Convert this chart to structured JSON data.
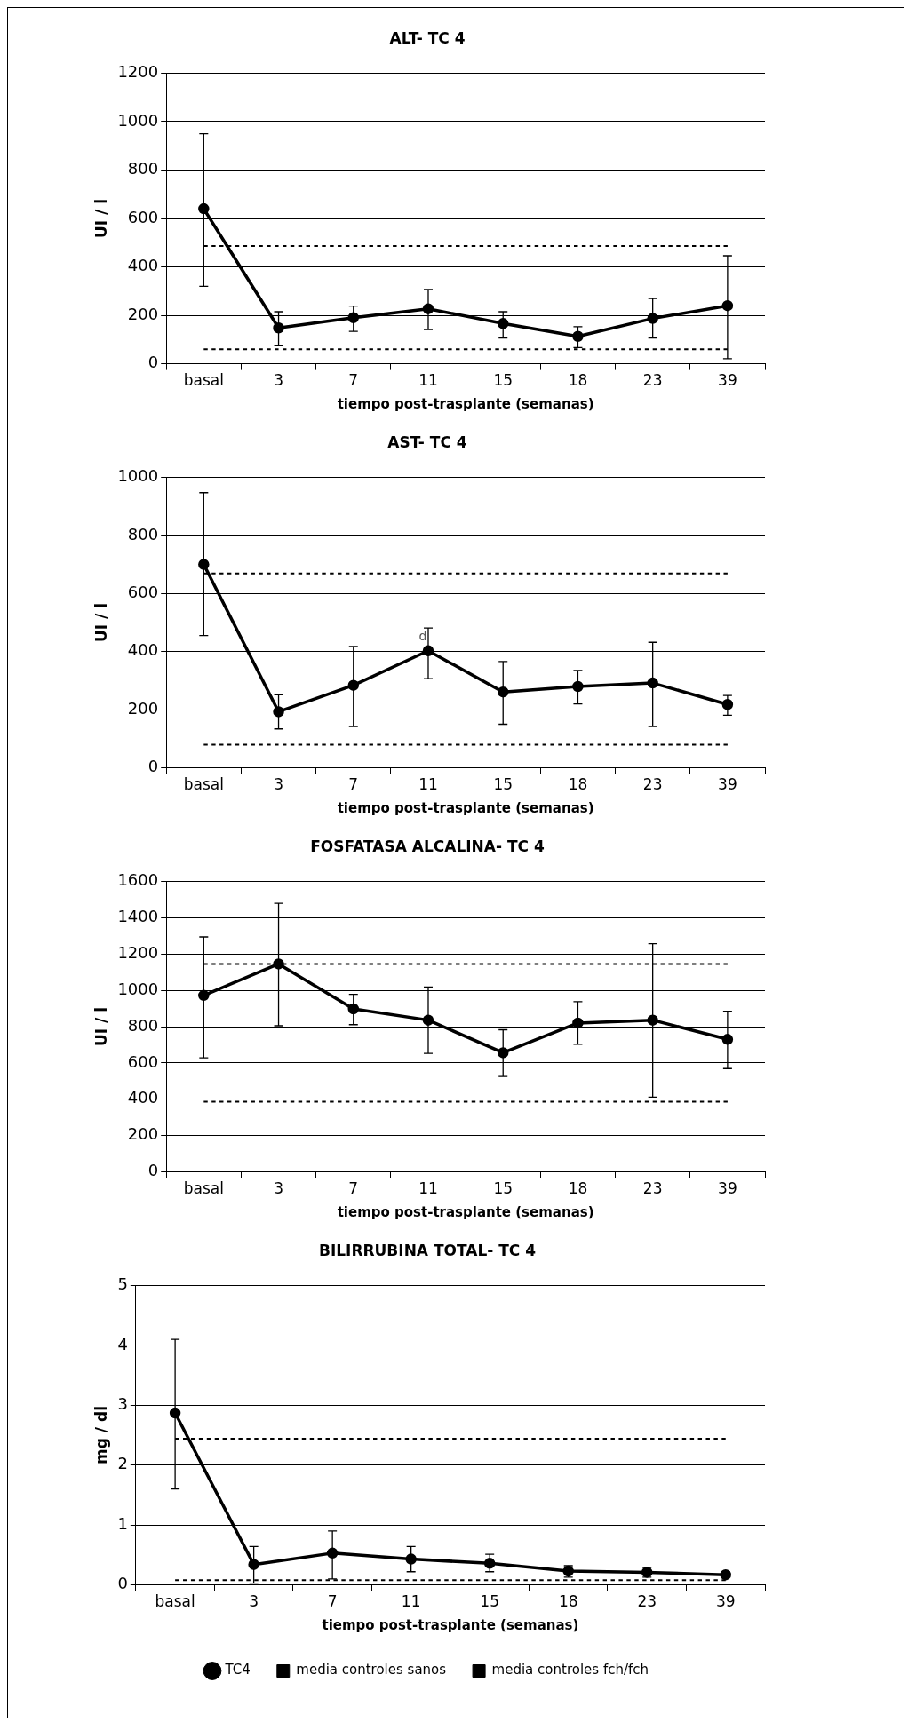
{
  "chart_data": [
    {
      "type": "line",
      "title": "ALT- TC 4",
      "xlabel": "tiempo post-trasplante (semanas)",
      "ylabel": "UI / l",
      "categories": [
        "basal",
        "3",
        "7",
        "11",
        "15",
        "18",
        "23",
        "39"
      ],
      "ylim": [
        0,
        1200
      ],
      "yticks": [
        0,
        200,
        400,
        600,
        800,
        1000,
        1200
      ],
      "grid": "y",
      "legend": false,
      "marker": "circle",
      "series": [
        {
          "color": "#000000",
          "values": [
            640,
            148,
            190,
            227,
            166,
            113,
            187,
            240
          ],
          "errors": [
            [
              320,
              950
            ],
            [
              74,
              215
            ],
            [
              134,
              238
            ],
            [
              141,
              307
            ],
            [
              106,
              215
            ],
            [
              67,
              153
            ],
            [
              106,
              270
            ],
            [
              21,
              446
            ]
          ]
        },
        {
          "type": "line",
          "color": "#000000",
          "line_style": "dotted",
          "marker": "none",
          "values": [
            60,
            60,
            60,
            60,
            60,
            60,
            60,
            60
          ]
        },
        {
          "type": "line",
          "color": "#000000",
          "line_style": "dotted",
          "marker": "none",
          "values": [
            486,
            486,
            486,
            486,
            486,
            486,
            486,
            486
          ]
        }
      ]
    },
    {
      "type": "line",
      "title": "AST- TC 4",
      "xlabel": "tiempo post-trasplante (semanas)",
      "ylabel": "UI / l",
      "categories": [
        "basal",
        "3",
        "7",
        "11",
        "15",
        "18",
        "23",
        "39"
      ],
      "ylim": [
        0,
        1000
      ],
      "yticks": [
        0,
        200,
        400,
        600,
        800,
        1000
      ],
      "grid": "y",
      "legend": false,
      "marker": "circle",
      "annotations": [
        {
          "text": "d",
          "x": "11",
          "y": 428
        }
      ],
      "series": [
        {
          "color": "#000000",
          "values": [
            700,
            193,
            284,
            403,
            261,
            280,
            292,
            218
          ],
          "errors": [
            [
              455,
              947
            ],
            [
              134,
              251
            ],
            [
              142,
              418
            ],
            [
              307,
              481
            ],
            [
              150,
              366
            ],
            [
              220,
              335
            ],
            [
              142,
              432
            ],
            [
              181,
              249
            ]
          ]
        },
        {
          "type": "line",
          "color": "#000000",
          "line_style": "dotted",
          "marker": "none",
          "values": [
            80,
            80,
            80,
            80,
            80,
            80,
            80,
            80
          ]
        },
        {
          "type": "line",
          "color": "#000000",
          "line_style": "dotted",
          "marker": "none",
          "values": [
            669,
            669,
            669,
            669,
            669,
            669,
            669,
            669
          ]
        }
      ]
    },
    {
      "type": "line",
      "title": "FOSFATASA ALCALINA- TC 4",
      "xlabel": "tiempo post-trasplante (semanas)",
      "ylabel": "UI / l",
      "categories": [
        "basal",
        "3",
        "7",
        "11",
        "15",
        "18",
        "23",
        "39"
      ],
      "ylim": [
        0,
        1600
      ],
      "yticks": [
        0,
        200,
        400,
        600,
        800,
        1000,
        1200,
        1400,
        1600
      ],
      "grid": "y",
      "legend": false,
      "marker": "circle",
      "series": [
        {
          "color": "#000000",
          "values": [
            972,
            1145,
            898,
            836,
            656,
            820,
            836,
            730
          ],
          "errors": [
            [
              628,
              1294
            ],
            [
              805,
              1479
            ],
            [
              811,
              978
            ],
            [
              653,
              1018
            ],
            [
              526,
              783
            ],
            [
              703,
              938
            ],
            [
              412,
              1257
            ],
            [
              569,
              885
            ]
          ]
        },
        {
          "type": "line",
          "color": "#000000",
          "line_style": "dotted",
          "marker": "none",
          "values": [
            387,
            387,
            387,
            387,
            387,
            387,
            387,
            387
          ]
        },
        {
          "type": "line",
          "color": "#000000",
          "line_style": "dotted",
          "marker": "none",
          "values": [
            1145,
            1145,
            1145,
            1145,
            1145,
            1145,
            1145,
            1145
          ]
        }
      ]
    },
    {
      "type": "line",
      "title": "BILIRRUBINA TOTAL- TC 4",
      "xlabel": "tiempo post-trasplante (semanas)",
      "ylabel": "mg / dl",
      "categories": [
        "basal",
        "3",
        "7",
        "11",
        "15",
        "18",
        "23",
        "39"
      ],
      "ylim": [
        0,
        5
      ],
      "yticks": [
        0,
        1,
        2,
        3,
        4,
        5
      ],
      "grid": "y",
      "legend": "bottom",
      "marker": "circle",
      "series": [
        {
          "name": "TC4",
          "color": "#000000",
          "values": [
            2.87,
            0.34,
            0.53,
            0.43,
            0.36,
            0.23,
            0.21,
            0.17
          ],
          "errors": [
            [
              1.6,
              4.1
            ],
            [
              0.03,
              0.64
            ],
            [
              0.1,
              0.9
            ],
            [
              0.22,
              0.64
            ],
            [
              0.22,
              0.51
            ],
            [
              0.13,
              0.32
            ],
            [
              0.13,
              0.29
            ],
            [
              0.17,
              0.22
            ]
          ]
        },
        {
          "name": "media controles sanos",
          "type": "line",
          "color": "#000000",
          "line_style": "dotted",
          "marker": "none",
          "values": [
            0.08,
            0.08,
            0.08,
            0.08,
            0.08,
            0.08,
            0.08,
            0.08
          ]
        },
        {
          "name": "media controles fch/fch",
          "type": "line",
          "color": "#000000",
          "line_style": "dotted",
          "marker": "none",
          "values": [
            2.44,
            2.44,
            2.44,
            2.44,
            2.44,
            2.44,
            2.44,
            2.44
          ]
        }
      ]
    }
  ]
}
